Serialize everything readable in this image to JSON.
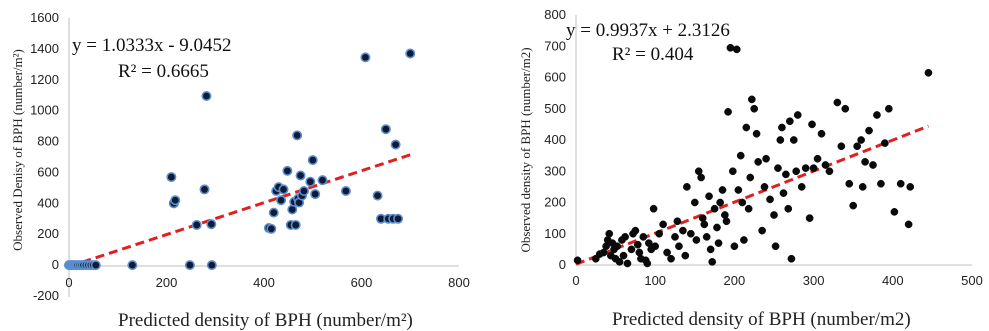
{
  "chart_data": [
    {
      "type": "scatter",
      "title": "",
      "xlabel": "Predicted  density of BPH (number/m²)",
      "ylabel": "Observed Denisy of BPH (number/m²)",
      "xlim": [
        0,
        800
      ],
      "ylim": [
        -200,
        1600
      ],
      "xticks": [
        "0",
        "200",
        "400",
        "600",
        "800"
      ],
      "yticks": [
        "-200",
        "0",
        "200",
        "400",
        "600",
        "800",
        "1000",
        "1200",
        "1400",
        "1600"
      ],
      "grid": false,
      "legend": "none",
      "marker_style": "filled-dark-blue-outline",
      "trendline_color": "#e02020",
      "equation": "y = 1.0333x - 9.0452",
      "r_squared": "R² = 0.6665",
      "trendline": {
        "slope": 1.0333,
        "intercept": -9.0452,
        "x_range": [
          0,
          700
        ]
      },
      "points": [
        [
          0,
          0
        ],
        [
          3,
          0
        ],
        [
          6,
          0
        ],
        [
          9,
          0
        ],
        [
          12,
          0
        ],
        [
          15,
          0
        ],
        [
          18,
          0
        ],
        [
          22,
          0
        ],
        [
          26,
          0
        ],
        [
          30,
          0
        ],
        [
          35,
          0
        ],
        [
          40,
          0
        ],
        [
          45,
          0
        ],
        [
          50,
          0
        ],
        [
          55,
          0
        ],
        [
          130,
          0
        ],
        [
          248,
          0
        ],
        [
          293,
          0
        ],
        [
          210,
          570
        ],
        [
          215,
          400
        ],
        [
          218,
          420
        ],
        [
          262,
          260
        ],
        [
          278,
          490
        ],
        [
          282,
          1095
        ],
        [
          292,
          265
        ],
        [
          410,
          240
        ],
        [
          415,
          235
        ],
        [
          420,
          340
        ],
        [
          425,
          480
        ],
        [
          430,
          505
        ],
        [
          435,
          420
        ],
        [
          440,
          490
        ],
        [
          448,
          610
        ],
        [
          455,
          260
        ],
        [
          458,
          360
        ],
        [
          462,
          410
        ],
        [
          465,
          260
        ],
        [
          468,
          840
        ],
        [
          470,
          430
        ],
        [
          472,
          405
        ],
        [
          475,
          580
        ],
        [
          478,
          450
        ],
        [
          482,
          480
        ],
        [
          495,
          540
        ],
        [
          500,
          680
        ],
        [
          505,
          460
        ],
        [
          520,
          550
        ],
        [
          568,
          480
        ],
        [
          608,
          1345
        ],
        [
          633,
          450
        ],
        [
          640,
          300
        ],
        [
          650,
          880
        ],
        [
          655,
          300
        ],
        [
          665,
          300
        ],
        [
          670,
          780
        ],
        [
          675,
          300
        ],
        [
          700,
          1370
        ]
      ]
    },
    {
      "type": "scatter",
      "title": "",
      "xlabel": "Predicted density of BPH (number/m2)",
      "ylabel": "Observed  density of BPH (number/m2)",
      "xlim": [
        0,
        500
      ],
      "ylim": [
        0,
        800
      ],
      "xticks": [
        "0",
        "100",
        "200",
        "300",
        "400",
        "500"
      ],
      "yticks": [
        "0",
        "100",
        "200",
        "300",
        "400",
        "500",
        "600",
        "700",
        "800"
      ],
      "grid": false,
      "legend": "none",
      "marker_style": "filled-black",
      "trendline_color": "#e02020",
      "equation": "y = 0.9937x + 2.3126",
      "r_squared": "R² = 0.404",
      "trendline": {
        "slope": 0.9937,
        "intercept": 2.3126,
        "x_range": [
          0,
          445
        ]
      },
      "points": [
        [
          2,
          15
        ],
        [
          25,
          20
        ],
        [
          30,
          35
        ],
        [
          35,
          40
        ],
        [
          38,
          60
        ],
        [
          40,
          80
        ],
        [
          42,
          100
        ],
        [
          44,
          30
        ],
        [
          46,
          70
        ],
        [
          48,
          50
        ],
        [
          50,
          20
        ],
        [
          52,
          60
        ],
        [
          55,
          10
        ],
        [
          58,
          80
        ],
        [
          60,
          30
        ],
        [
          62,
          90
        ],
        [
          65,
          5
        ],
        [
          70,
          50
        ],
        [
          72,
          100
        ],
        [
          75,
          110
        ],
        [
          78,
          65
        ],
        [
          80,
          40
        ],
        [
          82,
          20
        ],
        [
          85,
          90
        ],
        [
          88,
          15
        ],
        [
          90,
          5
        ],
        [
          92,
          70
        ],
        [
          95,
          50
        ],
        [
          98,
          180
        ],
        [
          100,
          60
        ],
        [
          105,
          100
        ],
        [
          110,
          130
        ],
        [
          115,
          40
        ],
        [
          120,
          20
        ],
        [
          125,
          90
        ],
        [
          128,
          140
        ],
        [
          130,
          60
        ],
        [
          135,
          110
        ],
        [
          138,
          30
        ],
        [
          140,
          250
        ],
        [
          145,
          100
        ],
        [
          150,
          200
        ],
        [
          152,
          80
        ],
        [
          155,
          300
        ],
        [
          158,
          280
        ],
        [
          160,
          150
        ],
        [
          162,
          130
        ],
        [
          165,
          90
        ],
        [
          168,
          220
        ],
        [
          170,
          50
        ],
        [
          172,
          10
        ],
        [
          175,
          180
        ],
        [
          178,
          120
        ],
        [
          180,
          70
        ],
        [
          182,
          200
        ],
        [
          185,
          240
        ],
        [
          188,
          160
        ],
        [
          190,
          140
        ],
        [
          192,
          490
        ],
        [
          195,
          695
        ],
        [
          198,
          300
        ],
        [
          200,
          60
        ],
        [
          203,
          690
        ],
        [
          205,
          240
        ],
        [
          208,
          350
        ],
        [
          210,
          200
        ],
        [
          212,
          80
        ],
        [
          215,
          440
        ],
        [
          218,
          180
        ],
        [
          220,
          280
        ],
        [
          222,
          530
        ],
        [
          225,
          500
        ],
        [
          228,
          420
        ],
        [
          230,
          330
        ],
        [
          235,
          110
        ],
        [
          238,
          250
        ],
        [
          240,
          340
        ],
        [
          245,
          210
        ],
        [
          250,
          160
        ],
        [
          252,
          60
        ],
        [
          255,
          310
        ],
        [
          258,
          400
        ],
        [
          260,
          440
        ],
        [
          262,
          230
        ],
        [
          265,
          290
        ],
        [
          268,
          180
        ],
        [
          270,
          460
        ],
        [
          272,
          20
        ],
        [
          275,
          400
        ],
        [
          278,
          300
        ],
        [
          280,
          480
        ],
        [
          285,
          250
        ],
        [
          290,
          310
        ],
        [
          295,
          150
        ],
        [
          298,
          450
        ],
        [
          300,
          310
        ],
        [
          305,
          340
        ],
        [
          310,
          420
        ],
        [
          315,
          320
        ],
        [
          320,
          300
        ],
        [
          330,
          520
        ],
        [
          335,
          380
        ],
        [
          340,
          500
        ],
        [
          345,
          260
        ],
        [
          350,
          190
        ],
        [
          355,
          380
        ],
        [
          360,
          400
        ],
        [
          362,
          250
        ],
        [
          365,
          330
        ],
        [
          370,
          430
        ],
        [
          375,
          320
        ],
        [
          380,
          480
        ],
        [
          385,
          260
        ],
        [
          390,
          390
        ],
        [
          395,
          500
        ],
        [
          402,
          170
        ],
        [
          410,
          260
        ],
        [
          420,
          130
        ],
        [
          422,
          250
        ],
        [
          445,
          615
        ]
      ]
    }
  ]
}
